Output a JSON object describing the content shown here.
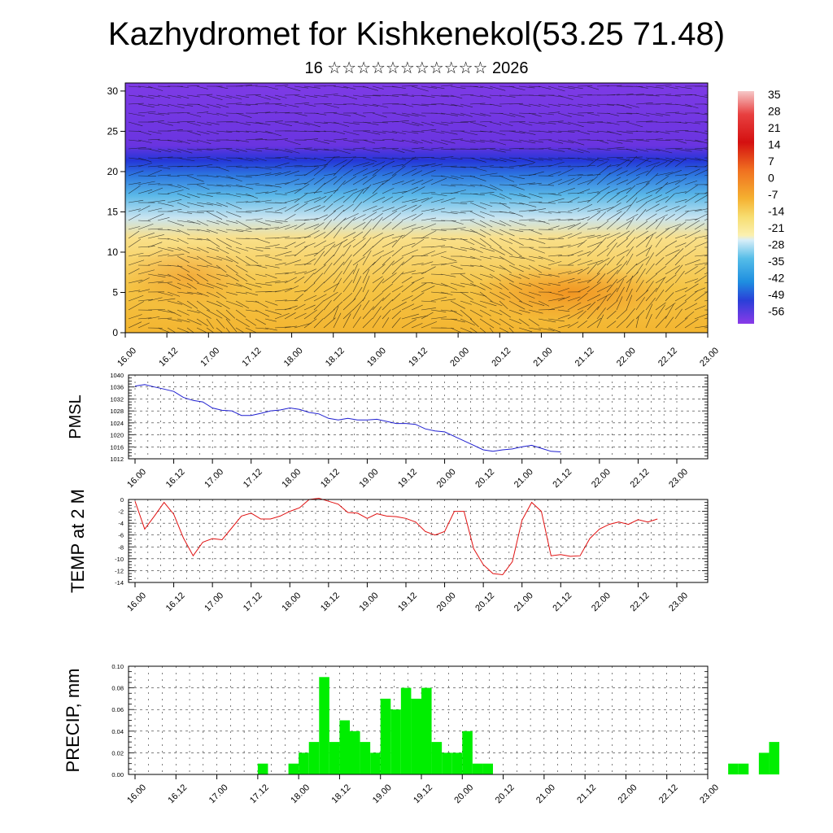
{
  "title": "Kazhydromet for Kishkenekol(53.25 71.48)",
  "subtitle": "16 ☆☆☆☆☆☆☆☆☆☆☆ 2026",
  "colors": {
    "pmsl_line": "#1f1fd0",
    "temp_line": "#e01010",
    "precip_bar": "#00ee00"
  },
  "chart_data": [
    {
      "type": "heatmap",
      "y_ticks": [
        0,
        5,
        10,
        15,
        20,
        25,
        30
      ],
      "ylim": [
        0,
        31
      ],
      "x_ticks": [
        "16.00",
        "16.12",
        "17.00",
        "17.12",
        "18.00",
        "18.12",
        "19.00",
        "19.12",
        "20.00",
        "20.12",
        "21.00",
        "21.12",
        "22.00",
        "22.12",
        "23.00"
      ],
      "colorbar_labels": [
        "35",
        "28",
        "21",
        "14",
        "7",
        "0",
        "-7",
        "-14",
        "-21",
        "-28",
        "-35",
        "-42",
        "-49",
        "-56"
      ],
      "colorbar_range": [
        -60,
        39
      ],
      "overlay": "wind vectors"
    },
    {
      "type": "line",
      "ylabel": "PMSL",
      "ylim": [
        1012,
        1040
      ],
      "y_ticks": [
        1012,
        1016,
        1020,
        1024,
        1028,
        1032,
        1036,
        1040
      ],
      "x_ticks": [
        "16.00",
        "16.12",
        "17.00",
        "17.12",
        "18.00",
        "18.12",
        "19.00",
        "19.12",
        "20.00",
        "20.12",
        "21.00",
        "21.12",
        "22.00",
        "22.12",
        "23.00"
      ],
      "x_step_hours": 3,
      "values": [
        1036.3,
        1036.8,
        1036.0,
        1035.3,
        1034.5,
        1032.5,
        1031.5,
        1031.0,
        1029.0,
        1028.2,
        1028.0,
        1026.5,
        1026.5,
        1027.2,
        1028.0,
        1028.3,
        1029.0,
        1028.5,
        1027.5,
        1027.0,
        1025.5,
        1025.0,
        1025.5,
        1025.0,
        1025.0,
        1025.2,
        1024.5,
        1023.8,
        1023.8,
        1023.5,
        1022.0,
        1021.3,
        1021.0,
        1019.5,
        1018.0,
        1016.5,
        1015.0,
        1014.5,
        1015.0,
        1015.3,
        1016.0,
        1016.5,
        1015.5,
        1014.5,
        1014.3
      ]
    },
    {
      "type": "line",
      "ylabel": "TEMP at 2 M",
      "ylim": [
        -14,
        0
      ],
      "y_ticks": [
        -14,
        -12,
        -10,
        -8,
        -6,
        -4,
        -2,
        0
      ],
      "x_ticks": [
        "16.00",
        "16.12",
        "17.00",
        "17.12",
        "18.00",
        "18.12",
        "19.00",
        "19.12",
        "20.00",
        "20.12",
        "21.00",
        "21.12",
        "22.00",
        "22.12",
        "23.00"
      ],
      "x_step_hours": 3,
      "values": [
        -0.3,
        -5.0,
        -2.8,
        -0.5,
        -2.5,
        -6.5,
        -9.5,
        -7.2,
        -6.6,
        -6.8,
        -4.8,
        -2.8,
        -2.3,
        -3.3,
        -3.3,
        -2.8,
        -2.0,
        -1.4,
        0.0,
        0.2,
        -0.3,
        -0.8,
        -2.2,
        -2.3,
        -3.2,
        -2.4,
        -2.8,
        -2.9,
        -3.2,
        -3.8,
        -5.4,
        -6.0,
        -5.4,
        -2.0,
        -2.0,
        -8.3,
        -11.0,
        -12.5,
        -12.7,
        -10.5,
        -3.5,
        -0.5,
        -2.0,
        -9.5,
        -9.3,
        -9.6,
        -9.5,
        -6.6,
        -5.0,
        -4.2,
        -3.8,
        -4.2,
        -3.4,
        -3.8,
        -3.3
      ]
    },
    {
      "type": "bar",
      "ylabel": "PRECIP, mm",
      "ylim": [
        0,
        0.1
      ],
      "y_ticks": [
        "0.00",
        "0.02",
        "0.04",
        "0.06",
        "0.08",
        "0.10"
      ],
      "x_ticks": [
        "16.00",
        "16.12",
        "17.00",
        "17.12",
        "18.00",
        "18.12",
        "19.00",
        "19.12",
        "20.00",
        "20.12",
        "21.00",
        "21.12",
        "22.00",
        "22.12",
        "23.00"
      ],
      "x_step_hours": 3,
      "values": [
        0,
        0,
        0,
        0,
        0,
        0,
        0,
        0,
        0,
        0,
        0,
        0,
        0,
        0.01,
        0,
        0,
        0.01,
        0.02,
        0.03,
        0.09,
        0.03,
        0.05,
        0.04,
        0.03,
        0.02,
        0.07,
        0.06,
        0.08,
        0.07,
        0.08,
        0.03,
        0.02,
        0.02,
        0.04,
        0.01,
        0.01,
        0,
        0,
        0,
        0,
        0,
        0,
        0,
        0,
        0,
        0,
        0,
        0,
        0,
        0,
        0,
        0,
        0,
        0,
        0,
        0,
        0,
        0,
        0,
        0.01,
        0.01,
        0,
        0.02,
        0.03
      ]
    }
  ]
}
